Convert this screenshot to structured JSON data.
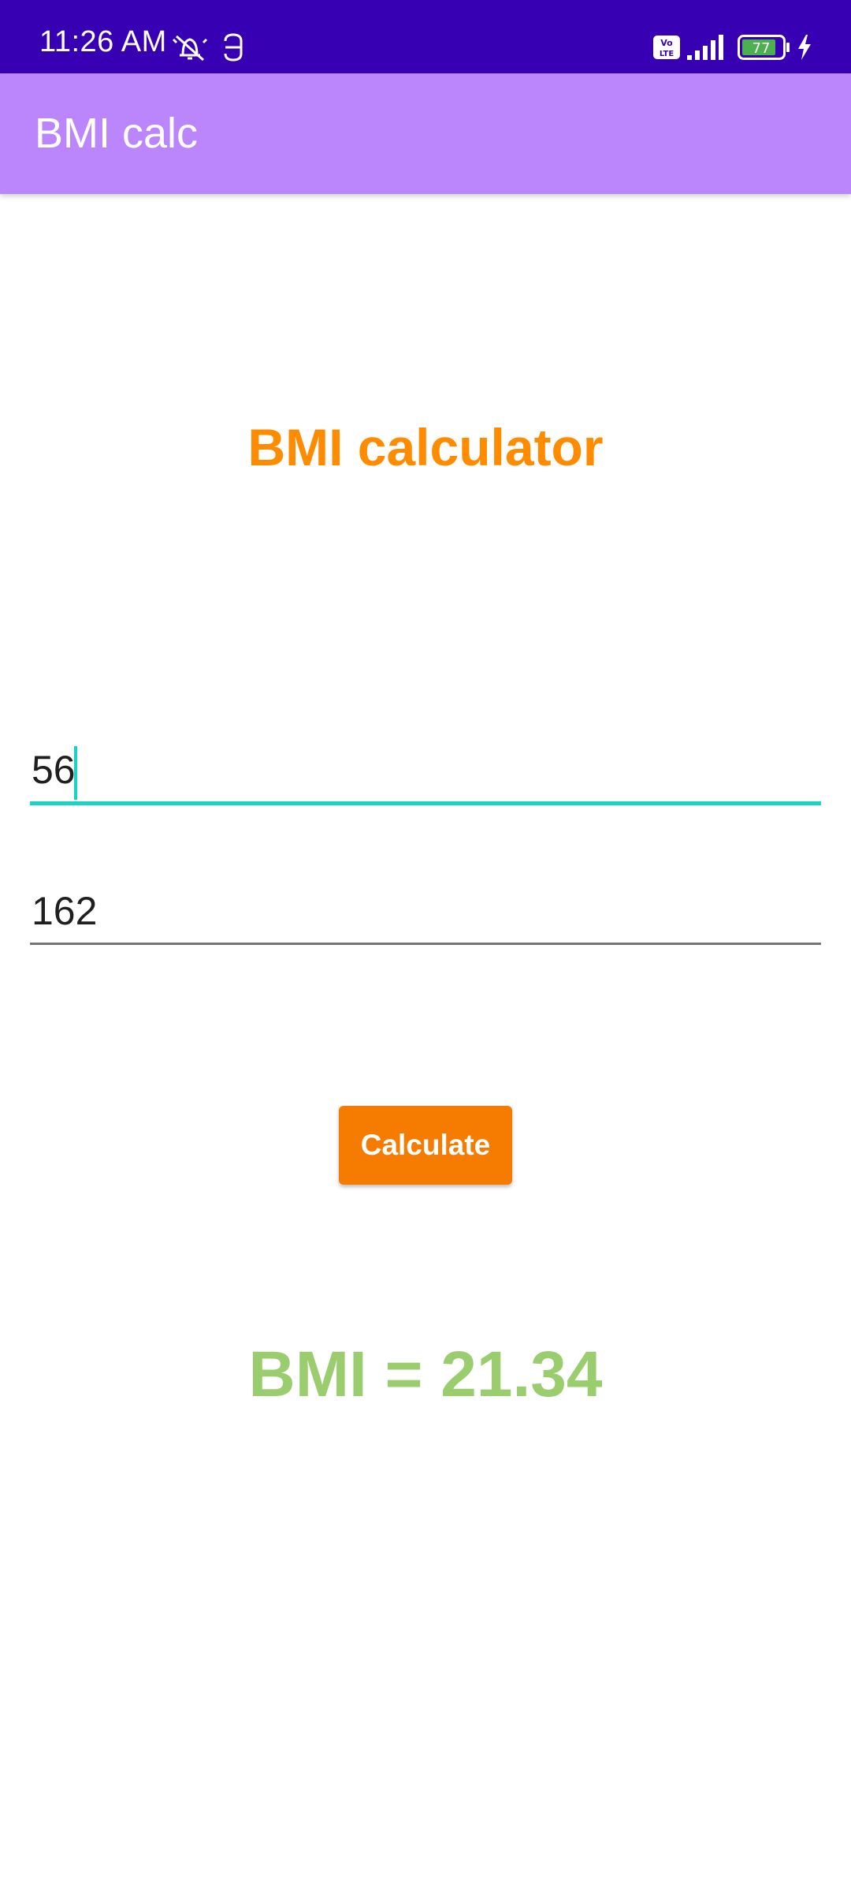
{
  "status_bar": {
    "time": "11:26 AM",
    "battery_level": "77",
    "icons": [
      "silent-alarm-icon",
      "sim-toolkit-icon",
      "volte-icon",
      "signal-icon",
      "battery-icon",
      "charging-icon"
    ]
  },
  "app_bar": {
    "title": "BMI calc"
  },
  "main": {
    "heading": "BMI calculator",
    "weight_field": {
      "value": "56",
      "focused": true
    },
    "height_field": {
      "value": "162",
      "focused": false
    },
    "calculate_button": "Calculate",
    "result": "BMI = 21.34"
  },
  "colors": {
    "status_bar": "#3700b3",
    "app_bar": "#bb86fc",
    "heading": "#ff8c00",
    "focus_accent": "#19d3c5",
    "underline": "#757575",
    "button": "#f57c00",
    "result": "#9acd6e"
  }
}
